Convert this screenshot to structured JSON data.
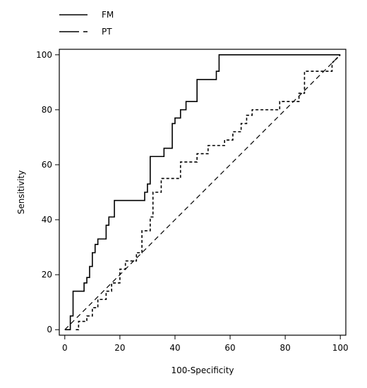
{
  "chart_data": {
    "type": "line",
    "title": "",
    "xlabel": "100-Specificity",
    "ylabel": "Sensitivity",
    "xlim": [
      -2,
      102
    ],
    "ylim": [
      -2,
      102
    ],
    "xticks": [
      0,
      20,
      40,
      60,
      80,
      100
    ],
    "yticks": [
      0,
      20,
      40,
      60,
      80,
      100
    ],
    "legend_position": "top-left",
    "grid": false,
    "series": [
      {
        "name": "FM",
        "style": "solid",
        "color": "#000000",
        "points": [
          [
            0,
            0
          ],
          [
            2,
            0
          ],
          [
            2,
            5
          ],
          [
            3,
            5
          ],
          [
            3,
            14
          ],
          [
            7,
            14
          ],
          [
            7,
            17
          ],
          [
            8,
            17
          ],
          [
            8,
            19
          ],
          [
            9,
            19
          ],
          [
            9,
            23
          ],
          [
            10,
            23
          ],
          [
            10,
            28
          ],
          [
            11,
            28
          ],
          [
            11,
            31
          ],
          [
            12,
            31
          ],
          [
            12,
            33
          ],
          [
            15,
            33
          ],
          [
            15,
            38
          ],
          [
            16,
            38
          ],
          [
            16,
            41
          ],
          [
            18,
            41
          ],
          [
            18,
            47
          ],
          [
            29,
            47
          ],
          [
            29,
            50
          ],
          [
            30,
            50
          ],
          [
            30,
            53
          ],
          [
            31,
            53
          ],
          [
            31,
            63
          ],
          [
            36,
            63
          ],
          [
            36,
            66
          ],
          [
            39,
            66
          ],
          [
            39,
            75
          ],
          [
            40,
            75
          ],
          [
            40,
            77
          ],
          [
            42,
            77
          ],
          [
            42,
            80
          ],
          [
            44,
            80
          ],
          [
            44,
            83
          ],
          [
            48,
            83
          ],
          [
            48,
            91
          ],
          [
            55,
            91
          ],
          [
            55,
            94
          ],
          [
            56,
            94
          ],
          [
            56,
            100
          ],
          [
            100,
            100
          ]
        ]
      },
      {
        "name": "PT",
        "style": "dashed",
        "color": "#000000",
        "points": [
          [
            4,
            0
          ],
          [
            5,
            0
          ],
          [
            5,
            3
          ],
          [
            8,
            3
          ],
          [
            8,
            5
          ],
          [
            10,
            5
          ],
          [
            10,
            8
          ],
          [
            12,
            8
          ],
          [
            12,
            11
          ],
          [
            15,
            11
          ],
          [
            15,
            14
          ],
          [
            17,
            14
          ],
          [
            17,
            17
          ],
          [
            20,
            17
          ],
          [
            20,
            22
          ],
          [
            22,
            22
          ],
          [
            22,
            25
          ],
          [
            26,
            25
          ],
          [
            26,
            28
          ],
          [
            28,
            28
          ],
          [
            28,
            36
          ],
          [
            31,
            36
          ],
          [
            31,
            41
          ],
          [
            32,
            41
          ],
          [
            32,
            50
          ],
          [
            35,
            50
          ],
          [
            35,
            55
          ],
          [
            42,
            55
          ],
          [
            42,
            61
          ],
          [
            48,
            61
          ],
          [
            48,
            64
          ],
          [
            52,
            64
          ],
          [
            52,
            67
          ],
          [
            58,
            67
          ],
          [
            58,
            69
          ],
          [
            61,
            69
          ],
          [
            61,
            72
          ],
          [
            64,
            72
          ],
          [
            64,
            75
          ],
          [
            66,
            75
          ],
          [
            66,
            78
          ],
          [
            68,
            78
          ],
          [
            68,
            80
          ],
          [
            78,
            80
          ],
          [
            78,
            83
          ],
          [
            85,
            83
          ],
          [
            85,
            86
          ],
          [
            87,
            86
          ],
          [
            87,
            94
          ],
          [
            97,
            94
          ],
          [
            97,
            97
          ],
          [
            100,
            100
          ]
        ]
      },
      {
        "name": "",
        "style": "dashed-reference",
        "color": "#000000",
        "points": [
          [
            0,
            0
          ],
          [
            100,
            100
          ]
        ]
      }
    ]
  }
}
